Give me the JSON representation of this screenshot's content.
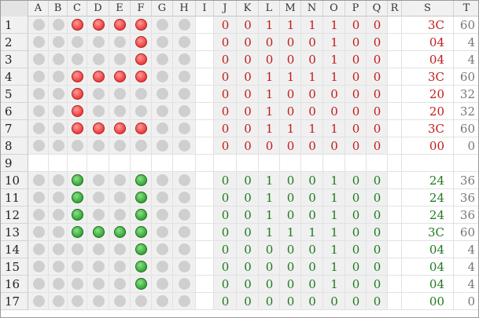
{
  "columns": [
    "A",
    "B",
    "C",
    "D",
    "E",
    "F",
    "G",
    "H",
    "I",
    "J",
    "K",
    "L",
    "M",
    "N",
    "O",
    "P",
    "Q",
    "R",
    "S",
    "T"
  ],
  "colors": {
    "red_bits": "#c21b1b",
    "green_bits": "#1e7a1e",
    "decimal": "#777777"
  },
  "rows": [
    {
      "num": "1",
      "dots": [
        "off",
        "off",
        "red",
        "red",
        "red",
        "red",
        "off",
        "off"
      ],
      "bits": [
        "0",
        "0",
        "1",
        "1",
        "1",
        "1",
        "0",
        "0"
      ],
      "hex": "3C",
      "dec": "60",
      "color": "red"
    },
    {
      "num": "2",
      "dots": [
        "off",
        "off",
        "off",
        "off",
        "off",
        "red",
        "off",
        "off"
      ],
      "bits": [
        "0",
        "0",
        "0",
        "0",
        "0",
        "1",
        "0",
        "0"
      ],
      "hex": "04",
      "dec": "4",
      "color": "red"
    },
    {
      "num": "3",
      "dots": [
        "off",
        "off",
        "off",
        "off",
        "off",
        "red",
        "off",
        "off"
      ],
      "bits": [
        "0",
        "0",
        "0",
        "0",
        "0",
        "1",
        "0",
        "0"
      ],
      "hex": "04",
      "dec": "4",
      "color": "red"
    },
    {
      "num": "4",
      "dots": [
        "off",
        "off",
        "red",
        "red",
        "red",
        "red",
        "off",
        "off"
      ],
      "bits": [
        "0",
        "0",
        "1",
        "1",
        "1",
        "1",
        "0",
        "0"
      ],
      "hex": "3C",
      "dec": "60",
      "color": "red"
    },
    {
      "num": "5",
      "dots": [
        "off",
        "off",
        "red",
        "off",
        "off",
        "off",
        "off",
        "off"
      ],
      "bits": [
        "0",
        "0",
        "1",
        "0",
        "0",
        "0",
        "0",
        "0"
      ],
      "hex": "20",
      "dec": "32",
      "color": "red"
    },
    {
      "num": "6",
      "dots": [
        "off",
        "off",
        "red",
        "off",
        "off",
        "off",
        "off",
        "off"
      ],
      "bits": [
        "0",
        "0",
        "1",
        "0",
        "0",
        "0",
        "0",
        "0"
      ],
      "hex": "20",
      "dec": "32",
      "color": "red"
    },
    {
      "num": "7",
      "dots": [
        "off",
        "off",
        "red",
        "red",
        "red",
        "red",
        "off",
        "off"
      ],
      "bits": [
        "0",
        "0",
        "1",
        "1",
        "1",
        "1",
        "0",
        "0"
      ],
      "hex": "3C",
      "dec": "60",
      "color": "red"
    },
    {
      "num": "8",
      "dots": [
        "off",
        "off",
        "off",
        "off",
        "off",
        "off",
        "off",
        "off"
      ],
      "bits": [
        "0",
        "0",
        "0",
        "0",
        "0",
        "0",
        "0",
        "0"
      ],
      "hex": "00",
      "dec": "0",
      "color": "red"
    },
    {
      "num": "9",
      "blank": true
    },
    {
      "num": "10",
      "dots": [
        "off",
        "off",
        "green",
        "off",
        "off",
        "green",
        "off",
        "off"
      ],
      "bits": [
        "0",
        "0",
        "1",
        "0",
        "0",
        "1",
        "0",
        "0"
      ],
      "hex": "24",
      "dec": "36",
      "color": "green"
    },
    {
      "num": "11",
      "dots": [
        "off",
        "off",
        "green",
        "off",
        "off",
        "green",
        "off",
        "off"
      ],
      "bits": [
        "0",
        "0",
        "1",
        "0",
        "0",
        "1",
        "0",
        "0"
      ],
      "hex": "24",
      "dec": "36",
      "color": "green"
    },
    {
      "num": "12",
      "dots": [
        "off",
        "off",
        "green",
        "off",
        "off",
        "green",
        "off",
        "off"
      ],
      "bits": [
        "0",
        "0",
        "1",
        "0",
        "0",
        "1",
        "0",
        "0"
      ],
      "hex": "24",
      "dec": "36",
      "color": "green"
    },
    {
      "num": "13",
      "dots": [
        "off",
        "off",
        "green",
        "green",
        "green",
        "green",
        "off",
        "off"
      ],
      "bits": [
        "0",
        "0",
        "1",
        "1",
        "1",
        "1",
        "0",
        "0"
      ],
      "hex": "3C",
      "dec": "60",
      "color": "green"
    },
    {
      "num": "14",
      "dots": [
        "off",
        "off",
        "off",
        "off",
        "off",
        "green",
        "off",
        "off"
      ],
      "bits": [
        "0",
        "0",
        "0",
        "0",
        "0",
        "1",
        "0",
        "0"
      ],
      "hex": "04",
      "dec": "4",
      "color": "green"
    },
    {
      "num": "15",
      "dots": [
        "off",
        "off",
        "off",
        "off",
        "off",
        "green",
        "off",
        "off"
      ],
      "bits": [
        "0",
        "0",
        "0",
        "0",
        "0",
        "1",
        "0",
        "0"
      ],
      "hex": "04",
      "dec": "4",
      "color": "green"
    },
    {
      "num": "16",
      "dots": [
        "off",
        "off",
        "off",
        "off",
        "off",
        "green",
        "off",
        "off"
      ],
      "bits": [
        "0",
        "0",
        "0",
        "0",
        "0",
        "1",
        "0",
        "0"
      ],
      "hex": "04",
      "dec": "4",
      "color": "green"
    },
    {
      "num": "17",
      "dots": [
        "off",
        "off",
        "off",
        "off",
        "off",
        "off",
        "off",
        "off"
      ],
      "bits": [
        "0",
        "0",
        "0",
        "0",
        "0",
        "0",
        "0",
        "0"
      ],
      "hex": "00",
      "dec": "0",
      "color": "green"
    }
  ]
}
